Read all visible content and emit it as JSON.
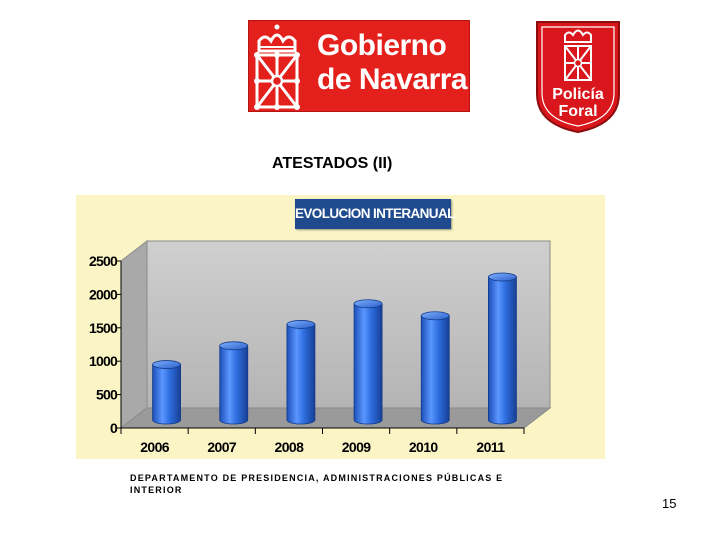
{
  "header": {
    "gobierno_logo_text": [
      "Gobierno",
      "de Navarra"
    ],
    "policia_logo_text": [
      "Policía",
      "Foral"
    ]
  },
  "slide": {
    "title": "ATESTADOS (II)",
    "footer": "DEPARTAMENTO DE PRESIDENCIA, ADMINISTRACIONES PÚBLICAS E INTERIOR",
    "page_number": "15"
  },
  "colors": {
    "navarra_red": "#e3201b",
    "chart_panel": "#fbf5c6",
    "banner_blue": "#1f4b8e",
    "bar_blue": "#2f6fe0"
  },
  "chart_data": {
    "type": "bar",
    "title": "EVOLUCION INTERANUAL",
    "categories": [
      "2006",
      "2007",
      "2008",
      "2009",
      "2010",
      "2011"
    ],
    "values": [
      950,
      1230,
      1550,
      1860,
      1680,
      2260
    ],
    "ylim": [
      0,
      2500
    ],
    "yticks": [
      "0",
      "500",
      "1000",
      "1500",
      "2000",
      "2500"
    ],
    "grid": false,
    "style": "3d-cylinder",
    "legend": "none"
  }
}
